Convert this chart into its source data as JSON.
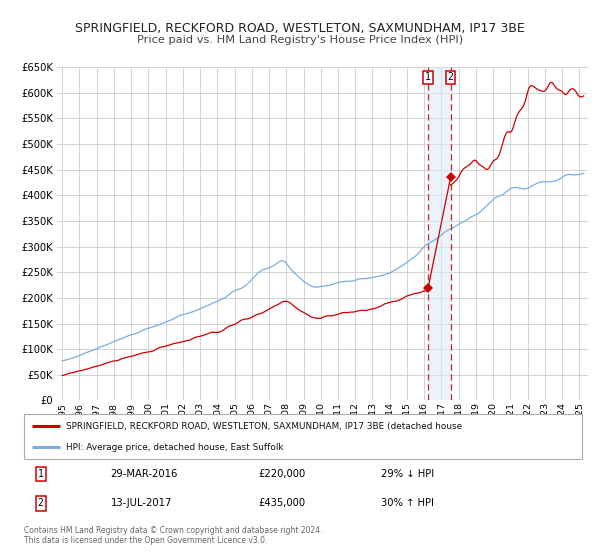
{
  "title": "SPRINGFIELD, RECKFORD ROAD, WESTLETON, SAXMUNDHAM, IP17 3BE",
  "subtitle": "Price paid vs. HM Land Registry's House Price Index (HPI)",
  "ylim": [
    0,
    650000
  ],
  "yticks": [
    0,
    50000,
    100000,
    150000,
    200000,
    250000,
    300000,
    350000,
    400000,
    450000,
    500000,
    550000,
    600000,
    650000
  ],
  "xlim_start": 1994.7,
  "xlim_end": 2025.5,
  "xticks": [
    1995,
    1996,
    1997,
    1998,
    1999,
    2000,
    2001,
    2002,
    2003,
    2004,
    2005,
    2006,
    2007,
    2008,
    2009,
    2010,
    2011,
    2012,
    2013,
    2014,
    2015,
    2016,
    2017,
    2018,
    2019,
    2020,
    2021,
    2022,
    2023,
    2024,
    2025
  ],
  "red_line_color": "#cc0000",
  "blue_line_color": "#7aadde",
  "vline1_x": 2016.23,
  "vline2_x": 2017.53,
  "point1_x": 2016.23,
  "point1_y": 220000,
  "point2_x": 2017.53,
  "point2_y": 435000,
  "legend_red": "SPRINGFIELD, RECKFORD ROAD, WESTLETON, SAXMUNDHAM, IP17 3BE (detached house",
  "legend_blue": "HPI: Average price, detached house, East Suffolk",
  "ann1_date": "29-MAR-2016",
  "ann1_price": "£220,000",
  "ann1_hpi": "29% ↓ HPI",
  "ann2_date": "13-JUL-2017",
  "ann2_price": "£435,000",
  "ann2_hpi": "30% ↑ HPI",
  "footnote1": "Contains HM Land Registry data © Crown copyright and database right 2024.",
  "footnote2": "This data is licensed under the Open Government Licence v3.0.",
  "bg_color": "#ffffff",
  "grid_color": "#cccccc"
}
